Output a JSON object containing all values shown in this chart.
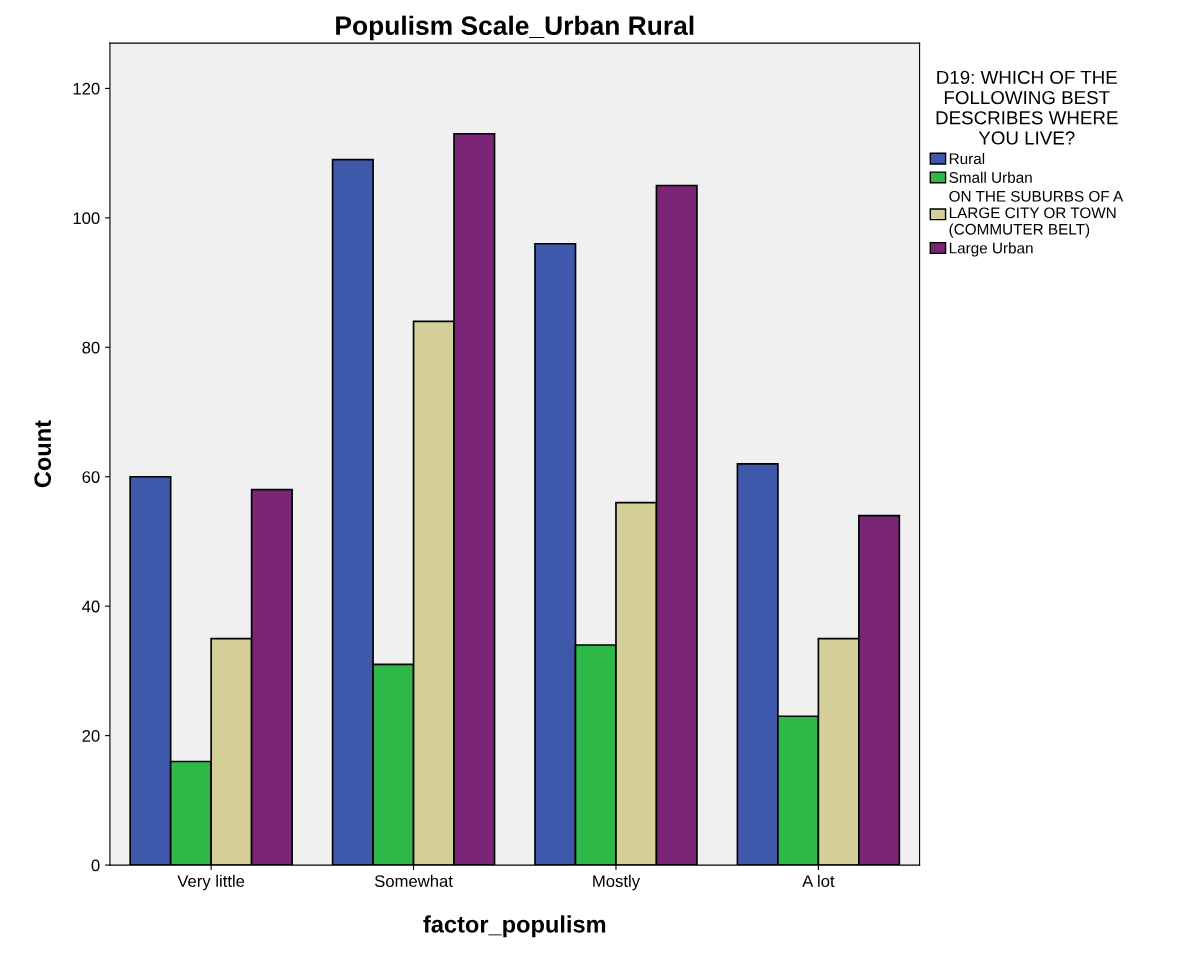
{
  "chart_data": {
    "type": "bar",
    "title": "Populism Scale_Urban Rural",
    "xlabel": "factor_populism",
    "ylabel": "Count",
    "legend_title": "D19: WHICH OF THE FOLLOWING BEST DESCRIBES WHERE YOU LIVE?",
    "categories": [
      "Very little",
      "Somewhat",
      "Mostly",
      "A lot"
    ],
    "series": [
      {
        "name": "Rural",
        "color": "#3e58ac",
        "values": [
          60,
          109,
          96,
          62
        ]
      },
      {
        "name": "Small Urban",
        "color": "#2eb848",
        "values": [
          16,
          31,
          34,
          23
        ]
      },
      {
        "name": "ON THE SUBURBS OF A LARGE CITY OR TOWN (COMMUTER BELT)",
        "color": "#d4cf96",
        "values": [
          35,
          84,
          56,
          35
        ]
      },
      {
        "name": "Large Urban",
        "color": "#7b2576",
        "values": [
          58,
          113,
          105,
          54
        ]
      }
    ],
    "ylim": [
      0,
      127
    ],
    "yticks": [
      0,
      20,
      40,
      60,
      80,
      100,
      120
    ],
    "grid": false,
    "legend": "right"
  }
}
